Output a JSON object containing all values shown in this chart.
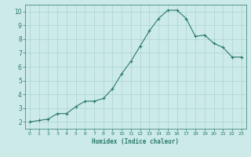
{
  "x": [
    0,
    1,
    2,
    3,
    4,
    5,
    6,
    7,
    8,
    9,
    10,
    11,
    12,
    13,
    14,
    15,
    16,
    17,
    18,
    19,
    20,
    21,
    22,
    23
  ],
  "y": [
    2.0,
    2.1,
    2.2,
    2.6,
    2.6,
    3.1,
    3.5,
    3.5,
    3.7,
    4.4,
    5.5,
    6.4,
    7.5,
    8.6,
    9.5,
    10.1,
    10.1,
    9.5,
    8.2,
    8.3,
    7.7,
    7.4,
    6.7,
    6.7
  ],
  "xlabel": "Humidex (Indice chaleur)",
  "xlim": [
    -0.5,
    23.5
  ],
  "ylim": [
    1.5,
    10.5
  ],
  "yticks": [
    2,
    3,
    4,
    5,
    6,
    7,
    8,
    9,
    10
  ],
  "xticks": [
    0,
    1,
    2,
    3,
    4,
    5,
    6,
    7,
    8,
    9,
    10,
    11,
    12,
    13,
    14,
    15,
    16,
    17,
    18,
    19,
    20,
    21,
    22,
    23
  ],
  "line_color": "#2a7a6a",
  "marker": "+",
  "bg_color": "#cceae8",
  "grid_color": "#aad4d0",
  "axis_color": "#2a7a6a",
  "label_color": "#2a7a6a",
  "tick_color": "#2a7a6a",
  "xlabel_fontsize": 5.5,
  "tick_fontsize_x": 4.5,
  "tick_fontsize_y": 5.5
}
